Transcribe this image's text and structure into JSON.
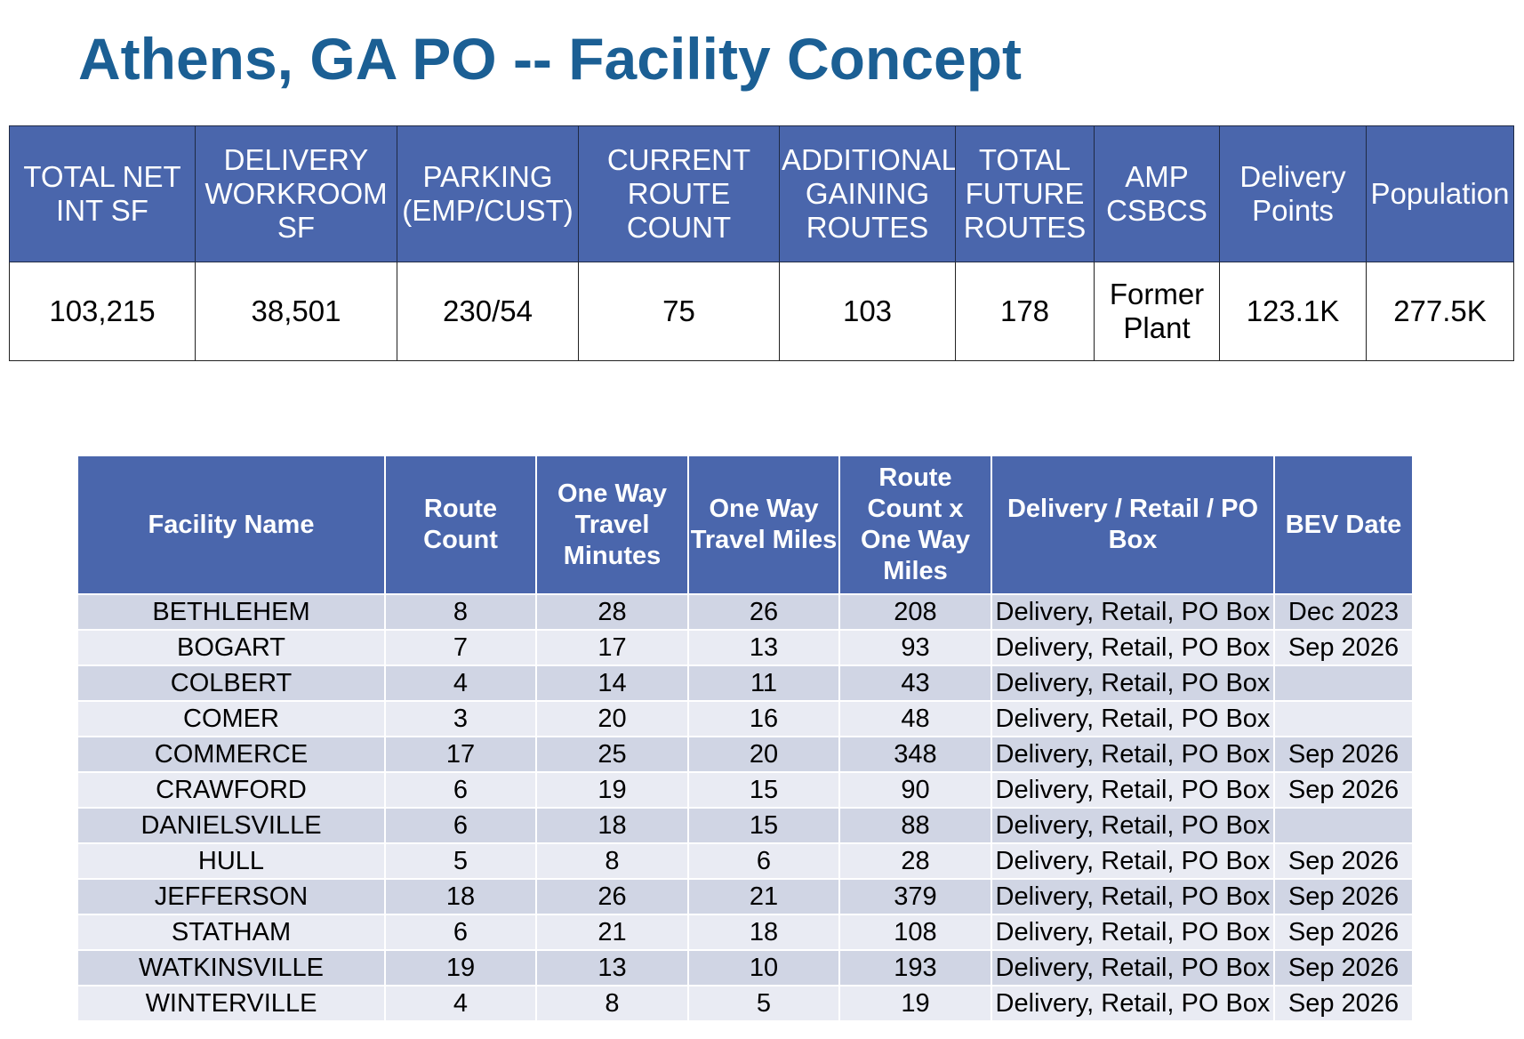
{
  "title": "Athens, GA PO -- Facility Concept",
  "summary": {
    "headers": [
      [
        "TOTAL NET",
        "INT SF"
      ],
      [
        "DELIVERY",
        "WORKROOM",
        "SF"
      ],
      [
        "PARKING",
        "(EMP/CUST)"
      ],
      [
        "CURRENT",
        "ROUTE",
        "COUNT"
      ],
      [
        "ADDITIONAL",
        "GAINING",
        "ROUTES"
      ],
      [
        "TOTAL",
        "FUTURE",
        "ROUTES"
      ],
      [
        "AMP",
        "CSBCS"
      ],
      [
        "Delivery",
        "Points"
      ],
      [
        "Population"
      ]
    ],
    "values": [
      [
        "103,215"
      ],
      [
        "38,501"
      ],
      [
        "230/54"
      ],
      [
        "75"
      ],
      [
        "103"
      ],
      [
        "178"
      ],
      [
        "Former",
        "Plant"
      ],
      [
        "123.1K"
      ],
      [
        "277.5K"
      ]
    ]
  },
  "facilities": {
    "headers": [
      [
        "Facility Name"
      ],
      [
        "Route",
        "Count"
      ],
      [
        "One Way",
        "Travel",
        "Minutes"
      ],
      [
        "One Way",
        "Travel Miles"
      ],
      [
        "Route",
        "Count x",
        "One Way",
        "Miles"
      ],
      [
        "Delivery / Retail / PO",
        "Box"
      ],
      [
        "BEV Date"
      ]
    ],
    "rows": [
      {
        "name": "BETHLEHEM",
        "route_count": "8",
        "minutes": "28",
        "miles": "26",
        "route_miles": "208",
        "type": "Delivery, Retail, PO Box",
        "bev": "Dec 2023"
      },
      {
        "name": "BOGART",
        "route_count": "7",
        "minutes": "17",
        "miles": "13",
        "route_miles": "93",
        "type": "Delivery, Retail, PO Box",
        "bev": "Sep 2026"
      },
      {
        "name": "COLBERT",
        "route_count": "4",
        "minutes": "14",
        "miles": "11",
        "route_miles": "43",
        "type": "Delivery, Retail, PO Box",
        "bev": ""
      },
      {
        "name": "COMER",
        "route_count": "3",
        "minutes": "20",
        "miles": "16",
        "route_miles": "48",
        "type": "Delivery, Retail, PO Box",
        "bev": ""
      },
      {
        "name": "COMMERCE",
        "route_count": "17",
        "minutes": "25",
        "miles": "20",
        "route_miles": "348",
        "type": "Delivery, Retail, PO Box",
        "bev": "Sep 2026"
      },
      {
        "name": "CRAWFORD",
        "route_count": "6",
        "minutes": "19",
        "miles": "15",
        "route_miles": "90",
        "type": "Delivery, Retail, PO Box",
        "bev": "Sep 2026"
      },
      {
        "name": "DANIELSVILLE",
        "route_count": "6",
        "minutes": "18",
        "miles": "15",
        "route_miles": "88",
        "type": "Delivery, Retail, PO Box",
        "bev": ""
      },
      {
        "name": "HULL",
        "route_count": "5",
        "minutes": "8",
        "miles": "6",
        "route_miles": "28",
        "type": "Delivery, Retail, PO Box",
        "bev": "Sep 2026"
      },
      {
        "name": "JEFFERSON",
        "route_count": "18",
        "minutes": "26",
        "miles": "21",
        "route_miles": "379",
        "type": "Delivery, Retail, PO Box",
        "bev": "Sep 2026"
      },
      {
        "name": "STATHAM",
        "route_count": "6",
        "minutes": "21",
        "miles": "18",
        "route_miles": "108",
        "type": "Delivery, Retail, PO Box",
        "bev": "Sep 2026"
      },
      {
        "name": "WATKINSVILLE",
        "route_count": "19",
        "minutes": "13",
        "miles": "10",
        "route_miles": "193",
        "type": "Delivery, Retail, PO Box",
        "bev": "Sep 2026"
      },
      {
        "name": "WINTERVILLE",
        "route_count": "4",
        "minutes": "8",
        "miles": "5",
        "route_miles": "19",
        "type": "Delivery, Retail, PO Box",
        "bev": "Sep 2026"
      }
    ]
  },
  "colors": {
    "title": "#1b5f94",
    "header_bg": "#4a66ac",
    "row_odd": "#d0d5e4",
    "row_even": "#e9ebf3"
  }
}
